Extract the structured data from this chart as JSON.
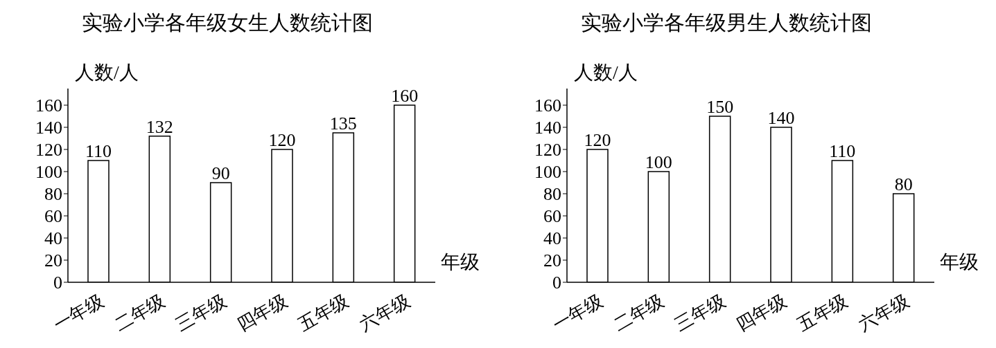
{
  "chart_data": [
    {
      "type": "bar",
      "title": "实验小学各年级女生人数统计图",
      "xlabel": "年级",
      "ylabel": "人数/人",
      "categories": [
        "一年级",
        "二年级",
        "三年级",
        "四年级",
        "五年级",
        "六年级"
      ],
      "values": [
        110,
        132,
        90,
        120,
        135,
        160
      ],
      "color": "#ffffff",
      "ylim": [
        0,
        175
      ],
      "yticks": [
        0,
        20,
        40,
        60,
        80,
        100,
        120,
        140,
        160
      ],
      "grid": false,
      "data_labels": true
    },
    {
      "type": "bar",
      "title": "实验小学各年级男生人数统计图",
      "xlabel": "年级",
      "ylabel": "人数/人",
      "categories": [
        "一年级",
        "二年级",
        "三年级",
        "四年级",
        "五年级",
        "六年级"
      ],
      "values": [
        120,
        100,
        150,
        140,
        110,
        80
      ],
      "color": "#ffffff",
      "ylim": [
        0,
        175
      ],
      "yticks": [
        0,
        20,
        40,
        60,
        80,
        100,
        120,
        140,
        160
      ],
      "grid": false,
      "data_labels": true
    }
  ]
}
